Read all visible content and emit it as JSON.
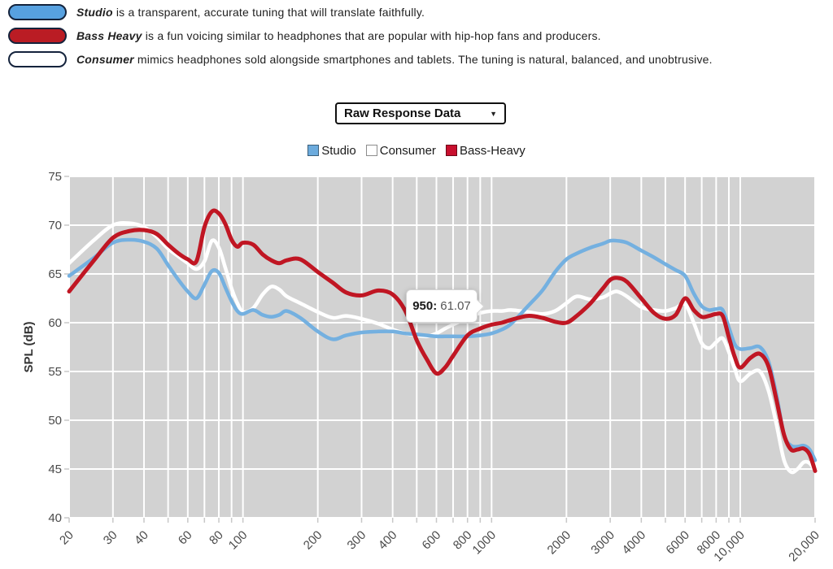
{
  "intro": {
    "items": [
      {
        "key": "Studio",
        "rest": " is a transparent, accurate tuning that will translate faithfully.",
        "color": "#57a1e0"
      },
      {
        "key": "Bass Heavy",
        "rest": " is a fun voicing similar to headphones that are popular with hip-hop fans and producers.",
        "color": "#ba1c24"
      },
      {
        "key": "Consumer",
        "rest": " mimics headphones sold alongside smartphones and tablets. The tuning is natural, balanced, and unobtrusive.",
        "color": "#ffffff"
      }
    ]
  },
  "dropdown": {
    "selected": "Raw Response Data",
    "caret": "▼"
  },
  "legend": {
    "items": [
      {
        "label": "Studio",
        "color": "#6cabdd"
      },
      {
        "label": "Consumer",
        "color": "#ffffff"
      },
      {
        "label": "Bass-Heavy",
        "color": "#c8102e"
      }
    ]
  },
  "tooltip": {
    "label": "950:",
    "value": "61.07"
  },
  "chart_data": {
    "type": "line",
    "title": "",
    "xlabel": "",
    "ylabel": "SPL (dB)",
    "x_scale": "log",
    "xlim": [
      20,
      20000
    ],
    "ylim": [
      40,
      75
    ],
    "grid": true,
    "plot_bg": "#d2d2d2",
    "grid_color": "#ffffff",
    "tick_color": "#c8c8c8",
    "label_color": "#4a4a4a",
    "y_ticks": [
      75,
      70,
      65,
      60,
      55,
      50,
      45,
      40
    ],
    "grid_freqs": [
      20,
      30,
      40,
      50,
      60,
      70,
      80,
      90,
      100,
      200,
      300,
      400,
      500,
      600,
      700,
      800,
      900,
      1000,
      2000,
      3000,
      4000,
      5000,
      6000,
      7000,
      8000,
      9000,
      10000,
      20000
    ],
    "x_ticks": [
      {
        "v": 20,
        "t": "20"
      },
      {
        "v": 30,
        "t": "30"
      },
      {
        "v": 40,
        "t": "40"
      },
      {
        "v": 60,
        "t": "60"
      },
      {
        "v": 80,
        "t": "80"
      },
      {
        "v": 100,
        "t": "100"
      },
      {
        "v": 200,
        "t": "200"
      },
      {
        "v": 300,
        "t": "300"
      },
      {
        "v": 400,
        "t": "400"
      },
      {
        "v": 600,
        "t": "600"
      },
      {
        "v": 800,
        "t": "800"
      },
      {
        "v": 1000,
        "t": "1000"
      },
      {
        "v": 2000,
        "t": "2000"
      },
      {
        "v": 3000,
        "t": "3000"
      },
      {
        "v": 4000,
        "t": "4000"
      },
      {
        "v": 6000,
        "t": "6000"
      },
      {
        "v": 8000,
        "t": "8000"
      },
      {
        "v": 10000,
        "t": "10,000"
      },
      {
        "v": 20000,
        "t": "20,000"
      }
    ],
    "x": [
      20,
      25,
      30,
      35,
      40,
      45,
      50,
      55,
      60,
      65,
      70,
      75,
      80,
      85,
      90,
      95,
      100,
      110,
      120,
      130,
      140,
      150,
      170,
      200,
      230,
      260,
      300,
      350,
      400,
      450,
      500,
      550,
      600,
      650,
      700,
      800,
      900,
      1000,
      1100,
      1200,
      1400,
      1600,
      1800,
      2000,
      2200,
      2500,
      2800,
      3000,
      3200,
      3500,
      4000,
      4500,
      5000,
      5500,
      6000,
      6500,
      7000,
      7500,
      8000,
      8500,
      9000,
      9500,
      10000,
      11000,
      12000,
      13000,
      14000,
      15000,
      16000,
      17000,
      18000,
      19000,
      20000
    ],
    "series": [
      {
        "name": "Studio",
        "color": "#74b0e0",
        "width": 4.5,
        "values": [
          64.8,
          66.6,
          68.2,
          68.5,
          68.3,
          67.6,
          65.9,
          64.4,
          63.2,
          62.5,
          63.9,
          65.3,
          65.1,
          63.6,
          62.2,
          61.2,
          60.9,
          61.3,
          60.8,
          60.6,
          60.8,
          61.2,
          60.5,
          59.1,
          58.3,
          58.7,
          59.0,
          59.1,
          59.1,
          58.9,
          58.8,
          58.7,
          58.6,
          58.6,
          58.6,
          58.6,
          58.7,
          58.9,
          59.3,
          59.9,
          61.7,
          63.3,
          65.2,
          66.5,
          67.1,
          67.7,
          68.1,
          68.4,
          68.4,
          68.2,
          67.4,
          66.7,
          66.0,
          65.4,
          64.8,
          63.0,
          61.7,
          61.3,
          61.4,
          61.3,
          59.5,
          57.8,
          57.3,
          57.4,
          57.5,
          56.0,
          52.5,
          48.5,
          47.4,
          47.3,
          47.4,
          47.0,
          45.9
        ]
      },
      {
        "name": "Consumer",
        "color": "#ffffff",
        "width": 4.5,
        "values": [
          66.1,
          68.4,
          70.0,
          70.2,
          69.8,
          68.8,
          67.6,
          66.8,
          66.1,
          65.5,
          66.3,
          68.4,
          67.7,
          65.6,
          63.5,
          62.0,
          61.1,
          61.5,
          62.9,
          63.7,
          63.4,
          62.7,
          62.0,
          61.1,
          60.5,
          60.7,
          60.4,
          59.9,
          59.3,
          58.9,
          58.7,
          58.6,
          58.9,
          59.4,
          59.8,
          60.5,
          61.0,
          61.2,
          61.2,
          61.3,
          61.1,
          60.9,
          61.2,
          62.0,
          62.7,
          62.4,
          62.6,
          63.0,
          63.2,
          62.7,
          61.6,
          61.3,
          61.2,
          61.5,
          61.9,
          60.0,
          57.9,
          57.4,
          58.0,
          58.4,
          57.0,
          55.3,
          54.0,
          54.8,
          55.0,
          53.0,
          49.5,
          45.9,
          44.7,
          45.0,
          45.7,
          45.6,
          44.8
        ]
      },
      {
        "name": "Bass-Heavy",
        "color": "#c01623",
        "width": 5,
        "values": [
          63.2,
          66.3,
          68.7,
          69.4,
          69.5,
          69.1,
          68.0,
          67.1,
          66.5,
          66.3,
          69.8,
          71.4,
          71.2,
          70.1,
          68.5,
          67.8,
          68.2,
          68.0,
          67.0,
          66.4,
          66.1,
          66.4,
          66.5,
          65.2,
          64.1,
          63.1,
          62.8,
          63.3,
          62.9,
          61.2,
          58.2,
          56.2,
          54.8,
          55.4,
          56.6,
          58.7,
          59.4,
          59.8,
          60.0,
          60.3,
          60.7,
          60.5,
          60.1,
          60.0,
          60.7,
          62.0,
          63.5,
          64.4,
          64.6,
          64.2,
          62.5,
          61.0,
          60.4,
          60.8,
          62.5,
          61.3,
          60.6,
          60.7,
          60.9,
          60.7,
          58.5,
          56.5,
          55.4,
          56.4,
          56.8,
          55.5,
          52.0,
          48.5,
          47.0,
          47.0,
          47.1,
          46.5,
          44.8
        ]
      }
    ],
    "draw_order": [
      1,
      0,
      2
    ],
    "legend_position": "top-center",
    "annotation": {
      "x": 950,
      "y": 61.07,
      "text": "950: 61.07"
    }
  }
}
